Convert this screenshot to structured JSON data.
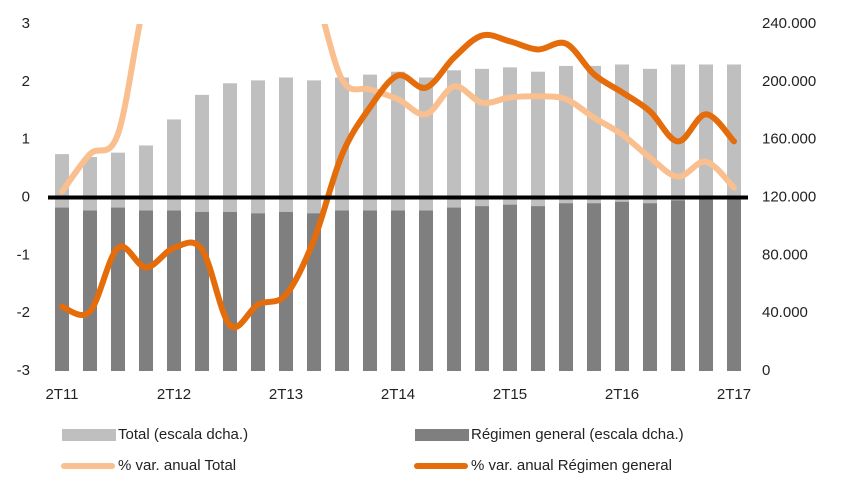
{
  "chart_data": {
    "type": "bar",
    "categories": [
      "2T11",
      null,
      null,
      null,
      "2T12",
      null,
      null,
      null,
      "2T13",
      null,
      null,
      null,
      "2T14",
      null,
      null,
      null,
      "2T15",
      null,
      null,
      null,
      "2T16",
      null,
      null,
      null,
      "2T17"
    ],
    "series": [
      {
        "name": "Total (escala dcha.)",
        "type": "bar",
        "axis": "y2",
        "color": "#bfbfbf",
        "values": [
          150000,
          148000,
          151000,
          156000,
          174000,
          191000,
          199000,
          201000,
          203000,
          201000,
          203000,
          205000,
          207000,
          203000,
          208000,
          209000,
          210000,
          207000,
          211000,
          211000,
          212000,
          209000,
          212000,
          212000,
          212000
        ]
      },
      {
        "name": "Régimen general (escala dcha.)",
        "type": "bar",
        "axis": "y2",
        "color": "#7f7f7f",
        "values": [
          113000,
          111000,
          113000,
          111000,
          111000,
          110000,
          110000,
          109000,
          110000,
          109000,
          111000,
          111000,
          111000,
          111000,
          113000,
          114000,
          115000,
          114000,
          116000,
          116000,
          117000,
          116000,
          118000,
          119000,
          119000
        ]
      },
      {
        "name": "% var. anual Total",
        "type": "line",
        "color": "#f9bf8f",
        "values": [
          0.1,
          0.75,
          1.1,
          3.5,
          4.5,
          5,
          5,
          5,
          4.5,
          3.6,
          2.04,
          1.87,
          1.7,
          1.44,
          1.92,
          1.64,
          1.73,
          1.75,
          1.7,
          1.38,
          1.09,
          0.69,
          0.36,
          0.62,
          0.17
        ]
      },
      {
        "name": "% var. anual Régimen general",
        "type": "line",
        "color": "#e46c0a",
        "values": [
          -1.89,
          -1.97,
          -0.87,
          -1.21,
          -0.87,
          -0.9,
          -2.21,
          -1.85,
          -1.68,
          -0.73,
          0.74,
          1.56,
          2.11,
          1.9,
          2.42,
          2.8,
          2.7,
          2.56,
          2.66,
          2.13,
          1.82,
          1.49,
          0.97,
          1.44,
          0.97
        ]
      }
    ],
    "ylim": [
      -3,
      3
    ],
    "yticks": [
      -3,
      -2,
      -1,
      0,
      1,
      2,
      3
    ],
    "y2lim": [
      0,
      240000
    ],
    "y2ticks": [
      0,
      {
        "value": 40000,
        "label": "40.000"
      },
      {
        "value": 80000,
        "label": "80.000"
      },
      {
        "value": 120000,
        "label": "120.000"
      },
      {
        "value": 160000,
        "label": "160.000"
      },
      {
        "value": 200000,
        "label": "200.000"
      },
      {
        "value": 240000,
        "label": "240.000"
      }
    ]
  }
}
